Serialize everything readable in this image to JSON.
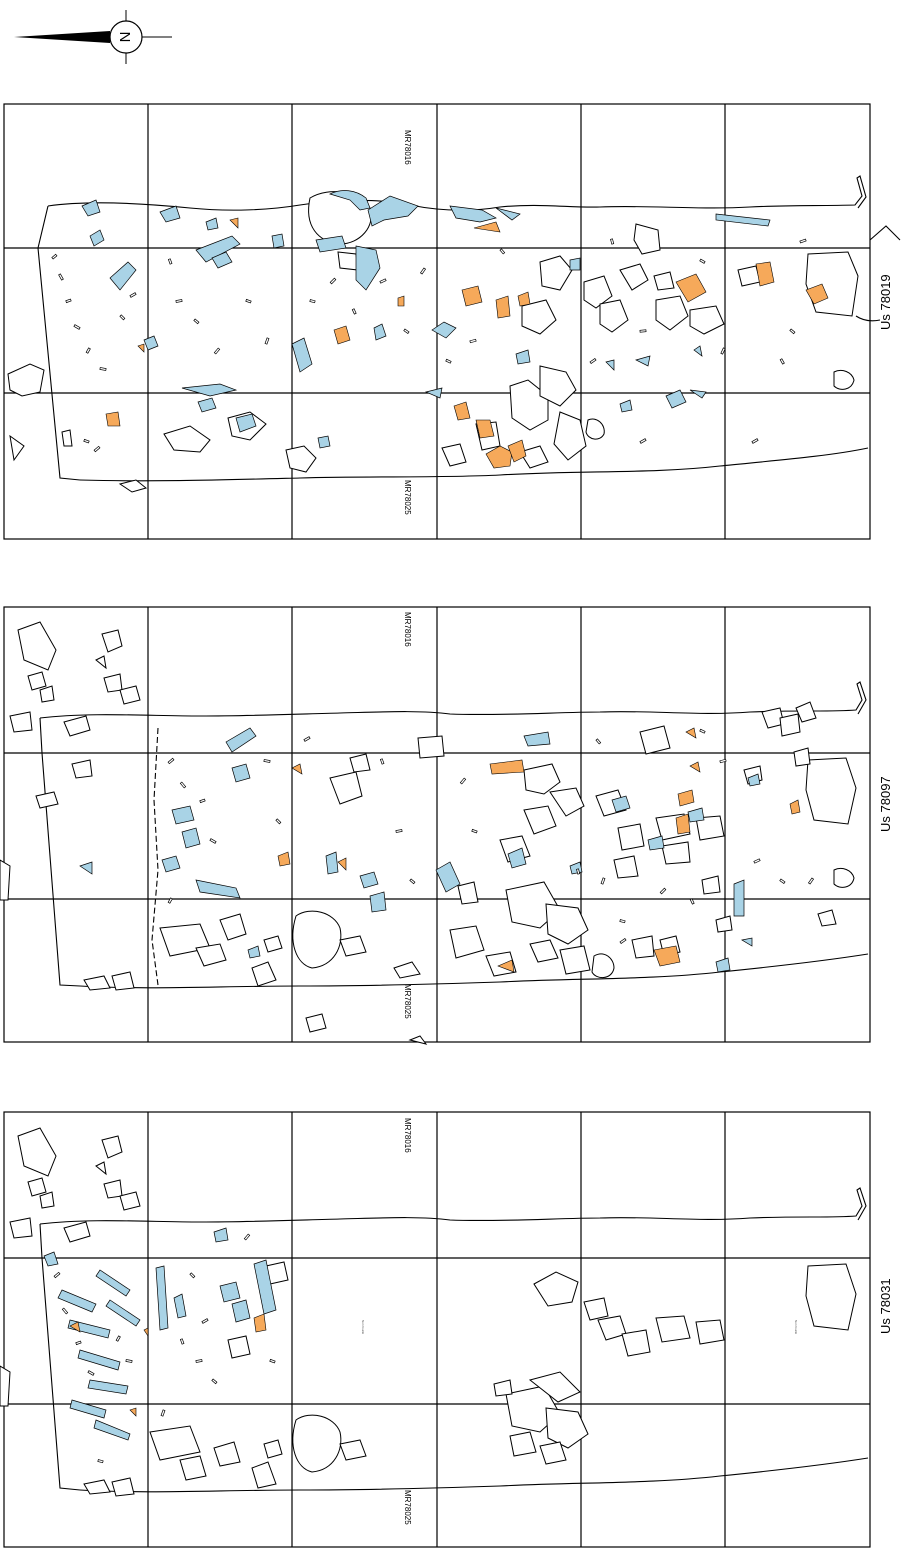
{
  "north_arrow": {
    "letter": "N"
  },
  "colors": {
    "bone": "#a9d3e6",
    "orange": "#f6a95a",
    "stone": "#ffffff",
    "line": "#000000"
  },
  "panels": [
    {
      "us_label": "Us 78019",
      "wall_top": "MR78016",
      "wall_bottom": "MR78025"
    },
    {
      "us_label": "Us 78097",
      "wall_top": "MR78016",
      "wall_bottom": "MR78025"
    },
    {
      "us_label": "Us 78031",
      "wall_top": "MR78016",
      "wall_bottom": "MR78025",
      "notes": [
        "Non fouillé",
        "Non fouillé"
      ]
    }
  ]
}
